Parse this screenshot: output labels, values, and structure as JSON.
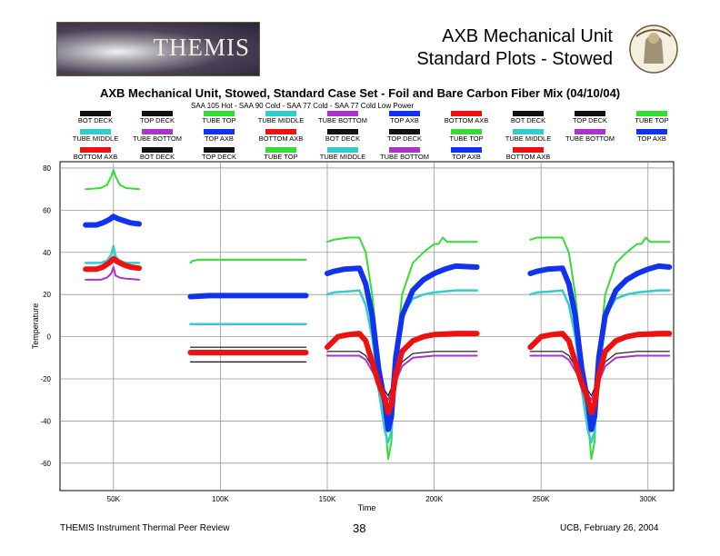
{
  "header": {
    "logo_text": "THEMIS",
    "title_line1": "AXB Mechanical Unit",
    "title_line2": "Standard Plots - Stowed"
  },
  "footer": {
    "left": "THEMIS Instrument Thermal Peer Review",
    "center": "38",
    "right": "UCB, February 26, 2004"
  },
  "colors": {
    "BOT DECK": "#111111",
    "TOP DECK": "#111111",
    "TUBE TOP": "#33dd33",
    "TUBE MIDDLE": "#33cccc",
    "TUBE BOTTOM": "#aa33cc",
    "TOP AXB": "#1133ee",
    "BOTTOM AXB": "#ee1111"
  },
  "legend_rows": [
    [
      "BOT DECK",
      "TOP DECK",
      "TUBE TOP",
      "TUBE MIDDLE",
      "TUBE BOTTOM",
      "TOP AXB",
      "BOTTOM AXB",
      "BOT DECK",
      "TOP DECK",
      "TUBE TOP"
    ],
    [
      "TUBE MIDDLE",
      "TUBE BOTTOM",
      "TOP AXB",
      "BOTTOM AXB",
      "BOT DECK",
      "TOP DECK",
      "TUBE TOP",
      "TUBE MIDDLE",
      "TUBE BOTTOM",
      "TOP AXB"
    ],
    [
      "BOTTOM AXB",
      "BOT DECK",
      "TOP DECK",
      "TUBE TOP",
      "TUBE MIDDLE",
      "TUBE BOTTOM",
      "TOP AXB",
      "BOTTOM AXB"
    ]
  ],
  "chart_data": {
    "type": "line",
    "title": "AXB Mechanical Unit, Stowed, Standard Case Set - Foil and Bare Carbon Fiber Mix (04/10/04)",
    "subtitle": "SAA 105 Hot - SAA 90 Cold - SAA 77 Cold - SAA 77 Cold Low Power",
    "xlabel": "Time",
    "ylabel": "Temperature",
    "xlim": [
      25000,
      312000
    ],
    "ylim": [
      -73,
      83
    ],
    "xticks": [
      50000,
      100000,
      150000,
      200000,
      250000,
      300000
    ],
    "xtick_labels": [
      "50K",
      "100K",
      "150K",
      "200K",
      "250K",
      "300K"
    ],
    "yticks": [
      80,
      60,
      40,
      20,
      0,
      -20,
      -40,
      -60
    ],
    "ytick_labels": [
      "80",
      "60",
      "40",
      "20",
      "0",
      "-20",
      "-40",
      "-60"
    ],
    "grid": true,
    "series": [
      {
        "name": "TUBE TOP",
        "segment": 1,
        "x": [
          37000,
          44000,
          47000,
          49000,
          50000,
          51000,
          53000,
          56000,
          62000
        ],
        "y": [
          70,
          70.5,
          72,
          76,
          79,
          76,
          72,
          70.5,
          70
        ]
      },
      {
        "name": "TOP AXB",
        "segment": 1,
        "x": [
          37000,
          42000,
          45000,
          48000,
          50000,
          52000,
          55000,
          58000,
          62000
        ],
        "y": [
          53,
          53,
          54,
          55.5,
          57,
          56,
          55,
          54,
          53.5
        ]
      },
      {
        "name": "TUBE MIDDLE",
        "segment": 1,
        "x": [
          37000,
          44000,
          47000,
          49000,
          50000,
          51000,
          53000,
          56000,
          62000
        ],
        "y": [
          35,
          35,
          36,
          39,
          43,
          38,
          36,
          35,
          35
        ]
      },
      {
        "name": "BOTTOM AXB",
        "segment": 1,
        "x": [
          37000,
          42000,
          45000,
          48000,
          50000,
          52000,
          55000,
          58000,
          62000
        ],
        "y": [
          32,
          32,
          33,
          35,
          37,
          35.5,
          34,
          33,
          32.5
        ]
      },
      {
        "name": "TUBE BOTTOM",
        "segment": 1,
        "x": [
          37000,
          44000,
          47000,
          49000,
          50000,
          51000,
          53000,
          56000,
          62000
        ],
        "y": [
          27,
          27,
          28,
          30,
          33,
          29,
          28,
          27.5,
          27
        ]
      },
      {
        "name": "TUBE TOP",
        "segment": 2,
        "x": [
          86000,
          87000,
          90000,
          95000,
          140000
        ],
        "y": [
          35,
          36,
          36.5,
          36.5,
          36.5
        ]
      },
      {
        "name": "TOP AXB",
        "segment": 2,
        "x": [
          86000,
          95000,
          110000,
          140000
        ],
        "y": [
          19,
          19.5,
          19.5,
          19.5
        ]
      },
      {
        "name": "TUBE MIDDLE",
        "segment": 2,
        "x": [
          86000,
          110000,
          140000
        ],
        "y": [
          6,
          6,
          6
        ]
      },
      {
        "name": "BOT DECK",
        "segment": 2,
        "x": [
          86000,
          110000,
          140000
        ],
        "y": [
          -5,
          -5,
          -5
        ]
      },
      {
        "name": "BOTTOM AXB",
        "segment": 2,
        "x": [
          86000,
          110000,
          140000
        ],
        "y": [
          -7.5,
          -7.5,
          -7.5
        ]
      },
      {
        "name": "TUBE BOTTOM",
        "segment": 2,
        "x": [
          86000,
          110000,
          140000
        ],
        "y": [
          -8.5,
          -8.5,
          -8.5
        ]
      },
      {
        "name": "TOP DECK",
        "segment": 2,
        "x": [
          86000,
          110000,
          140000
        ],
        "y": [
          -12,
          -12,
          -12
        ]
      },
      {
        "name": "TUBE TOP",
        "segment": 3,
        "x": [
          150000,
          153000,
          160000,
          165000,
          168000,
          171000,
          174000,
          177000,
          178500,
          180000,
          182000,
          185000,
          190000,
          195000,
          200000,
          202000,
          204000,
          206000,
          210000,
          220000
        ],
        "y": [
          45,
          46,
          47,
          47,
          40,
          20,
          -10,
          -40,
          -58,
          -50,
          -10,
          20,
          35,
          40,
          44,
          44,
          47,
          45,
          45,
          45
        ]
      },
      {
        "name": "TOP AXB",
        "segment": 3,
        "x": [
          150000,
          153000,
          158000,
          165000,
          168000,
          171000,
          174000,
          177000,
          178500,
          180000,
          182000,
          185000,
          190000,
          195000,
          200000,
          205000,
          210000,
          220000
        ],
        "y": [
          30,
          31,
          32,
          32.5,
          25,
          10,
          -15,
          -32,
          -44,
          -38,
          -10,
          10,
          22,
          27,
          30,
          32,
          33.5,
          33
        ]
      },
      {
        "name": "TUBE MIDDLE",
        "segment": 3,
        "x": [
          150000,
          153000,
          160000,
          165000,
          168000,
          171000,
          174000,
          177000,
          178500,
          180000,
          182000,
          185000,
          190000,
          195000,
          200000,
          210000,
          220000
        ],
        "y": [
          20,
          21,
          21.5,
          22,
          15,
          0,
          -25,
          -45,
          -50,
          -45,
          -10,
          10,
          18,
          20,
          21,
          22,
          22
        ]
      },
      {
        "name": "BOTTOM AXB",
        "segment": 3,
        "x": [
          150000,
          155000,
          160000,
          165000,
          168000,
          171000,
          174000,
          177000,
          178500,
          180000,
          182000,
          185000,
          190000,
          195000,
          200000,
          210000,
          220000
        ],
        "y": [
          -5,
          0,
          1,
          1.5,
          -2,
          -12,
          -22,
          -30,
          -36,
          -32,
          -18,
          -7,
          -2,
          0,
          1,
          1.5,
          1.5
        ]
      },
      {
        "name": "BOT DECK",
        "segment": 3,
        "x": [
          150000,
          155000,
          165000,
          168000,
          172000,
          176000,
          178500,
          181000,
          185000,
          190000,
          200000,
          220000
        ],
        "y": [
          -7,
          -7,
          -7,
          -9,
          -16,
          -24,
          -28,
          -22,
          -12,
          -8,
          -7,
          -7
        ]
      },
      {
        "name": "TUBE BOTTOM",
        "segment": 3,
        "x": [
          150000,
          155000,
          165000,
          168000,
          172000,
          176000,
          178500,
          181000,
          185000,
          190000,
          200000,
          220000
        ],
        "y": [
          -9,
          -9,
          -9,
          -11,
          -18,
          -26,
          -30,
          -24,
          -14,
          -10,
          -9,
          -9
        ]
      },
      {
        "name": "TUBE TOP",
        "segment": 4,
        "x": [
          245000,
          248000,
          255000,
          260000,
          263000,
          266000,
          269000,
          272000,
          273500,
          275000,
          277000,
          280000,
          285000,
          290000,
          295000,
          297000,
          299000,
          301000,
          305000,
          310000
        ],
        "y": [
          46,
          47,
          47,
          47,
          40,
          20,
          -10,
          -40,
          -58,
          -50,
          -10,
          20,
          35,
          40,
          44,
          44,
          47,
          45,
          45,
          45
        ]
      },
      {
        "name": "TOP AXB",
        "segment": 4,
        "x": [
          245000,
          248000,
          253000,
          260000,
          263000,
          266000,
          269000,
          272000,
          273500,
          275000,
          277000,
          280000,
          285000,
          290000,
          295000,
          300000,
          305000,
          310000
        ],
        "y": [
          30,
          31,
          32,
          32.5,
          25,
          10,
          -15,
          -32,
          -44,
          -38,
          -10,
          10,
          22,
          27,
          30,
          32,
          33.5,
          33
        ]
      },
      {
        "name": "TUBE MIDDLE",
        "segment": 4,
        "x": [
          245000,
          248000,
          255000,
          260000,
          263000,
          266000,
          269000,
          272000,
          273500,
          275000,
          277000,
          280000,
          285000,
          290000,
          295000,
          305000,
          310000
        ],
        "y": [
          20,
          21,
          21.5,
          22,
          15,
          0,
          -25,
          -45,
          -50,
          -45,
          -10,
          10,
          18,
          20,
          21,
          22,
          22
        ]
      },
      {
        "name": "BOTTOM AXB",
        "segment": 4,
        "x": [
          245000,
          250000,
          255000,
          260000,
          263000,
          266000,
          269000,
          272000,
          273500,
          275000,
          277000,
          280000,
          285000,
          290000,
          295000,
          305000,
          310000
        ],
        "y": [
          -5,
          0,
          1,
          1.5,
          -2,
          -12,
          -22,
          -30,
          -36,
          -32,
          -18,
          -7,
          -2,
          0,
          1,
          1.5,
          1.5
        ]
      },
      {
        "name": "BOT DECK",
        "segment": 4,
        "x": [
          245000,
          250000,
          260000,
          263000,
          267000,
          271000,
          273500,
          276000,
          280000,
          285000,
          295000,
          310000
        ],
        "y": [
          -7,
          -7,
          -7,
          -9,
          -16,
          -24,
          -28,
          -22,
          -12,
          -8,
          -7,
          -7
        ]
      },
      {
        "name": "TUBE BOTTOM",
        "segment": 4,
        "x": [
          245000,
          250000,
          260000,
          263000,
          267000,
          271000,
          273500,
          276000,
          280000,
          285000,
          295000,
          310000
        ],
        "y": [
          -9,
          -9,
          -9,
          -11,
          -18,
          -26,
          -30,
          -24,
          -14,
          -10,
          -9,
          -9
        ]
      }
    ]
  }
}
